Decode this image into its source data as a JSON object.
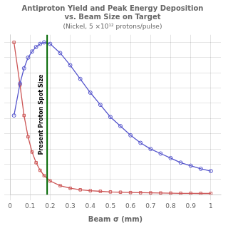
{
  "chart_data": {
    "type": "line",
    "title": [
      "Antiproton Yield and Peak Energy Deposition",
      "vs. Beam Size on Target"
    ],
    "subtitle": "(Nickel, 5 ×10¹² protons/pulse)",
    "x_label": "Beam σ (mm)",
    "x": [
      0.02,
      0.05,
      0.07,
      0.09,
      0.11,
      0.13,
      0.15,
      0.17,
      0.2,
      0.25,
      0.3,
      0.35,
      0.4,
      0.45,
      0.5,
      0.55,
      0.6,
      0.65,
      0.7,
      0.75,
      0.8,
      0.85,
      0.9,
      0.95,
      1.0
    ],
    "series": [
      {
        "color": "#5555cc",
        "marker": "circle",
        "values": [
          0.52,
          0.73,
          0.83,
          0.9,
          0.94,
          0.97,
          0.99,
          1.0,
          0.99,
          0.93,
          0.85,
          0.76,
          0.67,
          0.59,
          0.51,
          0.45,
          0.39,
          0.34,
          0.3,
          0.27,
          0.24,
          0.21,
          0.19,
          0.17,
          0.155
        ]
      },
      {
        "color": "#cc5555",
        "marker": "square",
        "values": [
          1.0,
          0.72,
          0.52,
          0.38,
          0.28,
          0.21,
          0.16,
          0.125,
          0.09,
          0.059,
          0.042,
          0.032,
          0.026,
          0.022,
          0.018,
          0.016,
          0.014,
          0.013,
          0.012,
          0.011,
          0.01,
          0.009,
          0.009,
          0.008,
          0.008
        ]
      }
    ],
    "annotations": [
      {
        "x": 0.185,
        "text": "Present Proton Spot Size",
        "color": "#006600"
      }
    ],
    "xlim": [
      0.0,
      1.05
    ],
    "ylim": [
      0.0,
      1.05
    ],
    "xticks": [
      0,
      0.1,
      0.2,
      0.3,
      0.4,
      0.5,
      0.6,
      0.7,
      0.8,
      0.9,
      1
    ],
    "yticks": [
      0,
      0.1,
      0.2,
      0.3,
      0.4,
      0.5,
      0.6,
      0.7,
      0.8,
      0.9,
      1
    ],
    "tick_labels": "x",
    "grid": true
  }
}
